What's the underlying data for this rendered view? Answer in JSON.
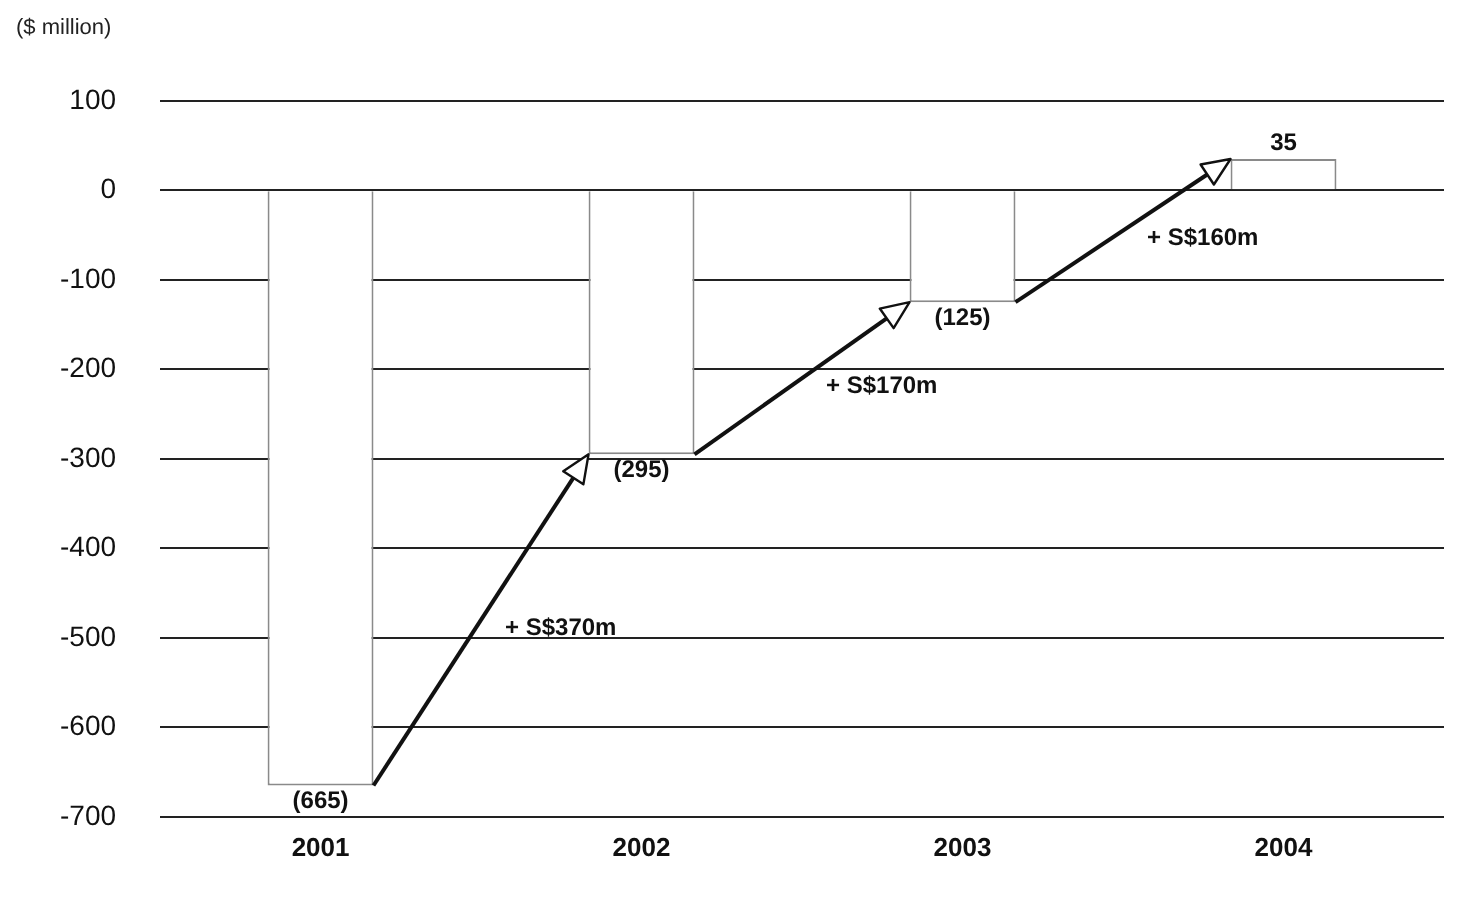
{
  "chart_data": {
    "type": "bar",
    "ylabel": "($ million)",
    "categories": [
      "2001",
      "2002",
      "2003",
      "2004"
    ],
    "values": [
      -665,
      -295,
      -125,
      35
    ],
    "value_labels": [
      "(665)",
      "(295)",
      "(125)",
      "35"
    ],
    "color": "#ffffff",
    "ylim": [
      -700,
      100
    ],
    "yticks": [
      -700,
      -600,
      -500,
      -400,
      -300,
      -200,
      -100,
      0,
      100
    ],
    "grid": "y",
    "legend": false,
    "annotations": [
      "+ S$370m",
      "+ S$170m",
      "+ S$160m"
    ]
  }
}
